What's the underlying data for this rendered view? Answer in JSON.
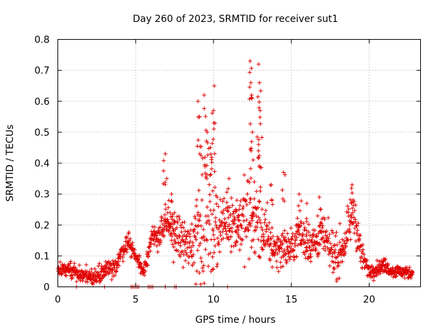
{
  "chart_data": {
    "type": "scatter",
    "title": "Day 260 of 2023, SRMTID for receiver sut1",
    "xlabel": "GPS time / hours",
    "ylabel": "SRMTID / TECUs",
    "xlim": [
      0,
      23.3
    ],
    "ylim": [
      0,
      0.8
    ],
    "xticks": [
      0,
      5,
      10,
      15,
      20
    ],
    "yticks": [
      0,
      0.1,
      0.2,
      0.3,
      0.4,
      0.5,
      0.6,
      0.7,
      0.8
    ],
    "xtick_labels": [
      "0",
      "5",
      "10",
      "15",
      "20"
    ],
    "ytick_labels": [
      "0",
      "0.1",
      "0.2",
      "0.3",
      "0.4",
      "0.5",
      "0.6",
      "0.7",
      "0.8"
    ],
    "grid": true,
    "marker": "plus",
    "color": "#e00000",
    "series": [
      {
        "name": "SRMTID",
        "profile": [
          [
            0.0,
            0.05
          ],
          [
            0.5,
            0.06
          ],
          [
            1.0,
            0.055
          ],
          [
            1.5,
            0.035
          ],
          [
            2.0,
            0.04
          ],
          [
            2.5,
            0.03
          ],
          [
            3.0,
            0.06
          ],
          [
            3.5,
            0.05
          ],
          [
            4.0,
            0.1
          ],
          [
            4.5,
            0.15
          ],
          [
            5.5,
            0.05
          ],
          [
            6.0,
            0.15
          ],
          [
            6.5,
            0.17
          ],
          [
            7.0,
            0.2
          ],
          [
            7.5,
            0.17
          ],
          [
            8.0,
            0.15
          ],
          [
            8.5,
            0.12
          ],
          [
            9.0,
            0.2
          ],
          [
            9.5,
            0.25
          ],
          [
            10.0,
            0.2
          ],
          [
            10.5,
            0.2
          ],
          [
            11.0,
            0.22
          ],
          [
            11.5,
            0.2
          ],
          [
            12.0,
            0.22
          ],
          [
            12.5,
            0.22
          ],
          [
            13.0,
            0.2
          ],
          [
            13.5,
            0.15
          ],
          [
            14.0,
            0.12
          ],
          [
            14.5,
            0.13
          ],
          [
            15.0,
            0.12
          ],
          [
            15.5,
            0.18
          ],
          [
            16.0,
            0.14
          ],
          [
            16.5,
            0.14
          ],
          [
            17.0,
            0.17
          ],
          [
            17.5,
            0.12
          ],
          [
            18.0,
            0.1
          ],
          [
            18.5,
            0.15
          ],
          [
            19.0,
            0.25
          ],
          [
            19.5,
            0.1
          ],
          [
            20.0,
            0.05
          ],
          [
            20.5,
            0.06
          ],
          [
            21.0,
            0.07
          ],
          [
            21.5,
            0.05
          ],
          [
            22.0,
            0.05
          ],
          [
            22.5,
            0.045
          ],
          [
            22.8,
            0.045
          ]
        ],
        "spread": [
          [
            0.0,
            0.02
          ],
          [
            4.5,
            0.025
          ],
          [
            5.5,
            0.02
          ],
          [
            8.5,
            0.07
          ],
          [
            9.2,
            0.18
          ],
          [
            10.0,
            0.15
          ],
          [
            10.5,
            0.06
          ],
          [
            11.5,
            0.08
          ],
          [
            12.3,
            0.12
          ],
          [
            13.0,
            0.1
          ],
          [
            14.0,
            0.05
          ],
          [
            17.0,
            0.05
          ],
          [
            19.0,
            0.06
          ],
          [
            20.0,
            0.02
          ],
          [
            22.8,
            0.015
          ]
        ],
        "peaks": [
          [
            6.9,
            0.43
          ],
          [
            7.0,
            0.35
          ],
          [
            7.3,
            0.3
          ],
          [
            7.5,
            0.24
          ],
          [
            9.0,
            0.6
          ],
          [
            9.1,
            0.55
          ],
          [
            9.4,
            0.62
          ],
          [
            9.6,
            0.5
          ],
          [
            10.05,
            0.65
          ],
          [
            10.0,
            0.57
          ],
          [
            9.8,
            0.45
          ],
          [
            11.0,
            0.35
          ],
          [
            11.5,
            0.28
          ],
          [
            12.35,
            0.73
          ],
          [
            12.4,
            0.66
          ],
          [
            12.45,
            0.62
          ],
          [
            12.5,
            0.5
          ],
          [
            12.9,
            0.72
          ],
          [
            12.95,
            0.66
          ],
          [
            12.9,
            0.46
          ],
          [
            13.0,
            0.57
          ],
          [
            14.5,
            0.37
          ],
          [
            15.5,
            0.3
          ],
          [
            16.8,
            0.29
          ],
          [
            18.9,
            0.33
          ],
          [
            16.0,
            0.27
          ],
          [
            13.7,
            0.33
          ]
        ],
        "zeros": [
          1.2,
          3.0,
          4.7,
          4.8,
          4.9,
          5.0,
          5.1,
          5.2,
          5.8,
          5.9,
          6.0,
          6.1,
          6.9,
          7.5,
          7.6,
          10.9
        ]
      }
    ]
  }
}
